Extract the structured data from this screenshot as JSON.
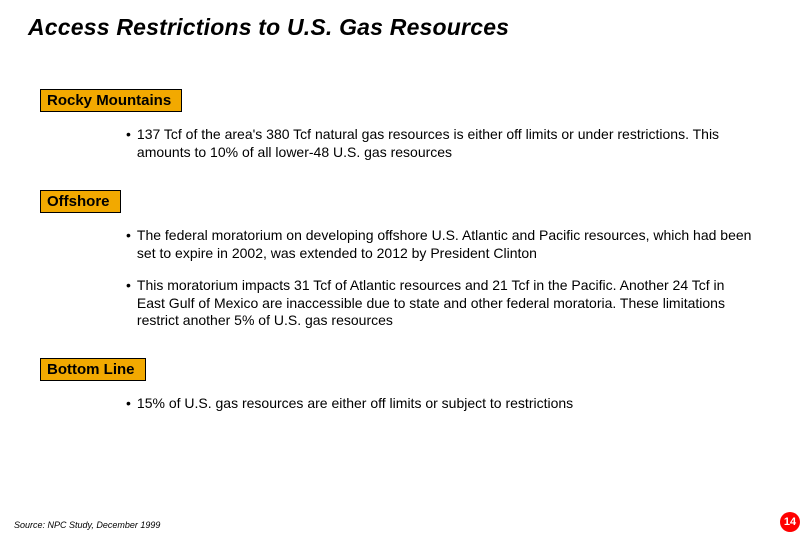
{
  "title": "Access Restrictions to U.S. Gas Resources",
  "sections": [
    {
      "header": "Rocky Mountains",
      "bullets": [
        "137 Tcf of the area's 380 Tcf natural gas resources is either off limits or under restrictions. This amounts to 10% of all lower-48 U.S. gas resources"
      ]
    },
    {
      "header": "Offshore",
      "bullets": [
        "The federal moratorium on developing offshore U.S. Atlantic and Pacific resources, which had been set to expire in 2002, was extended to 2012 by President Clinton",
        "This moratorium impacts 31 Tcf of Atlantic resources and 21 Tcf in the Pacific. Another 24 Tcf in East Gulf of Mexico are inaccessible due to state and other federal moratoria. These limitations restrict another 5% of U.S. gas resources"
      ]
    },
    {
      "header": "Bottom Line",
      "bullets": [
        "15% of U.S. gas resources are either off limits or subject to restrictions"
      ]
    }
  ],
  "source": "Source: NPC Study, December 1999",
  "page_number": "14",
  "colors": {
    "header_bg": "#f2a900",
    "pagenum_bg": "#ff0000",
    "text": "#000000",
    "background": "#ffffff"
  }
}
